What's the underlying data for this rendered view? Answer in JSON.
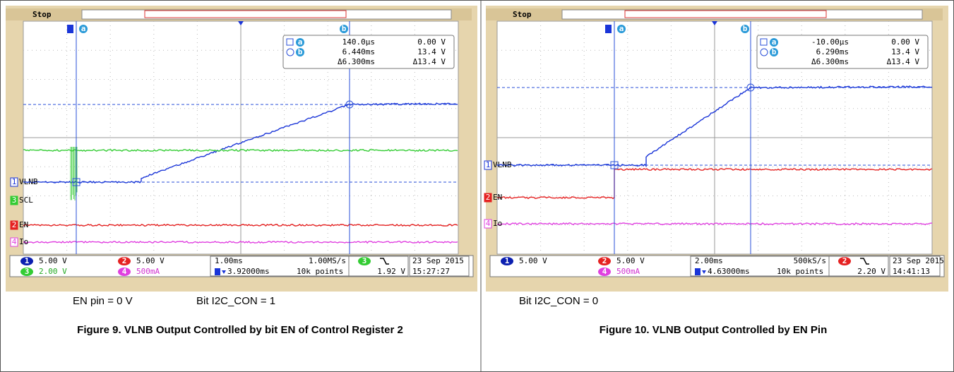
{
  "panels": [
    {
      "figure": {
        "status": "Stop",
        "cursor_a": "a",
        "cursor_b": "b",
        "readout": [
          [
            "140.0µs",
            "0.00 V"
          ],
          [
            "6.440ms",
            "13.4 V"
          ],
          [
            "Δ6.300ms",
            "Δ13.4 V"
          ]
        ],
        "channels": [
          {
            "id": "1",
            "label": "VLNB"
          },
          {
            "id": "3",
            "label": "SCL"
          },
          {
            "id": "2",
            "label": "EN"
          },
          {
            "id": "4",
            "label": "Io"
          }
        ],
        "scales": [
          {
            "id": "1",
            "value": "5.00 V"
          },
          {
            "id": "2",
            "value": "5.00 V"
          },
          {
            "id": "3",
            "value": "2.00 V"
          },
          {
            "id": "4",
            "value": "500mA"
          }
        ],
        "timebase": "1.00ms",
        "sample_rate": "1.00MS/s",
        "position": "3.92000ms",
        "record": "10k points",
        "trigger_channel": "3",
        "trigger_level": "1.92 V",
        "date": "23 Sep 2015",
        "time": "15:27:27"
      },
      "notes": [
        "EN pin = 0 V",
        "Bit I2C_CON = 1"
      ],
      "caption": "Figure 9. VLNB Output Controlled by bit EN of Control Register 2"
    },
    {
      "figure": {
        "status": "Stop",
        "cursor_a": "a",
        "cursor_b": "b",
        "readout": [
          [
            "-10.00µs",
            "0.00 V"
          ],
          [
            "6.290ms",
            "13.4 V"
          ],
          [
            "Δ6.300ms",
            "Δ13.4 V"
          ]
        ],
        "channels": [
          {
            "id": "1",
            "label": "VLNB"
          },
          {
            "id": "2",
            "label": "EN"
          },
          {
            "id": "4",
            "label": "Io"
          }
        ],
        "scales": [
          {
            "id": "1",
            "value": "5.00 V"
          },
          {
            "id": "2",
            "value": "5.00 V"
          },
          {
            "id": "4",
            "value": "500mA"
          }
        ],
        "timebase": "2.00ms",
        "sample_rate": "500kS/s",
        "position": "4.63000ms",
        "record": "10k points",
        "trigger_channel": "2",
        "trigger_level": "2.20 V",
        "date": "23 Sep 2015",
        "time": "14:41:13"
      },
      "notes": [
        "Bit I2C_CON = 0"
      ],
      "caption": "Figure 10. VLNB Output Controlled by EN Pin"
    }
  ]
}
